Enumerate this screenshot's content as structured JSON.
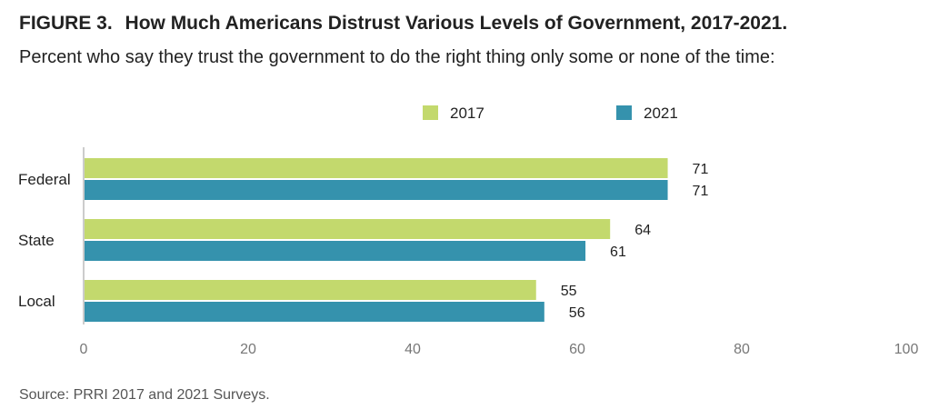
{
  "figure": {
    "label": "FIGURE 3.",
    "title": "How Much Americans Distrust Various Levels of Government, 2017-2021.",
    "subtitle": "Percent who say they trust the government to do the right thing only some or none of the time:",
    "source": "Source: PRRI 2017 and 2021 Surveys."
  },
  "colors": {
    "series_2017": "#c3d96d",
    "series_2021": "#3592ad",
    "axis": "#cccccc",
    "tick_text": "#777777",
    "label_text": "#222222"
  },
  "chart_data": {
    "type": "bar",
    "orientation": "horizontal",
    "categories": [
      "Federal",
      "State",
      "Local"
    ],
    "series": [
      {
        "name": "2017",
        "values": [
          71,
          64,
          55
        ]
      },
      {
        "name": "2021",
        "values": [
          71,
          61,
          56
        ]
      }
    ],
    "xlim": [
      0,
      100
    ],
    "xticks": [
      0,
      20,
      40,
      60,
      80,
      100
    ],
    "legend_position": "top-center",
    "grid": false
  }
}
